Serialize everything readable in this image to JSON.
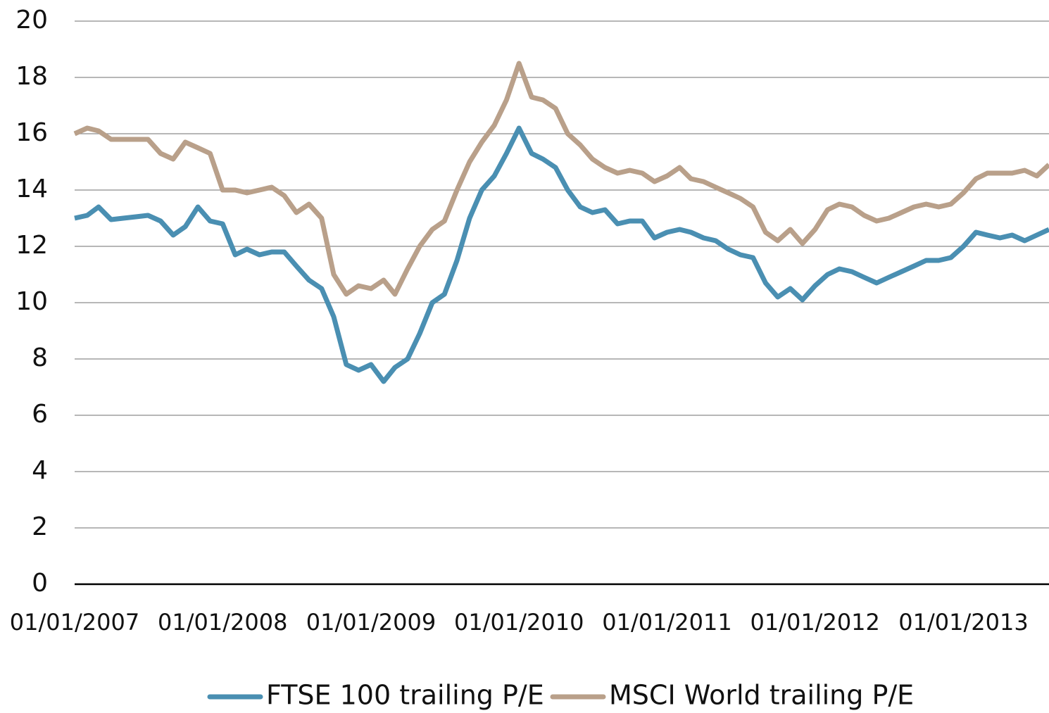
{
  "chart_data": {
    "type": "line",
    "x": [
      "2007-01-01",
      "2007-02-01",
      "2007-03-01",
      "2007-04-01",
      "2007-05-01",
      "2007-06-01",
      "2007-07-01",
      "2007-08-01",
      "2007-09-01",
      "2007-10-01",
      "2007-11-01",
      "2007-12-01",
      "2008-01-01",
      "2008-02-01",
      "2008-03-01",
      "2008-04-01",
      "2008-05-01",
      "2008-06-01",
      "2008-07-01",
      "2008-08-01",
      "2008-09-01",
      "2008-10-01",
      "2008-11-01",
      "2008-12-01",
      "2009-01-01",
      "2009-02-01",
      "2009-03-01",
      "2009-04-01",
      "2009-05-01",
      "2009-06-01",
      "2009-07-01",
      "2009-08-01",
      "2009-09-01",
      "2009-10-01",
      "2009-11-01",
      "2009-12-01",
      "2010-01-01",
      "2010-02-01",
      "2010-03-01",
      "2010-04-01",
      "2010-05-01",
      "2010-06-01",
      "2010-07-01",
      "2010-08-01",
      "2010-09-01",
      "2010-10-01",
      "2010-11-01",
      "2010-12-01",
      "2011-01-01",
      "2011-02-01",
      "2011-03-01",
      "2011-04-01",
      "2011-05-01",
      "2011-06-01",
      "2011-07-01",
      "2011-08-01",
      "2011-09-01",
      "2011-10-01",
      "2011-11-01",
      "2011-12-01",
      "2012-01-01",
      "2012-02-01",
      "2012-03-01",
      "2012-04-01",
      "2012-05-01",
      "2012-06-01",
      "2012-07-01",
      "2012-08-01",
      "2012-09-01",
      "2012-10-01",
      "2012-11-01",
      "2012-12-01",
      "2013-01-01",
      "2013-02-01",
      "2013-03-01",
      "2013-04-01",
      "2013-05-01",
      "2013-06-01",
      "2013-07-01",
      "2013-07-31"
    ],
    "series": [
      {
        "name": "FTSE 100 trailing P/E",
        "color": "#4a8fb2",
        "values": [
          13.0,
          13.1,
          13.4,
          12.95,
          13.0,
          13.05,
          13.1,
          12.9,
          12.4,
          12.7,
          13.4,
          12.9,
          12.8,
          11.7,
          11.9,
          11.7,
          11.8,
          11.8,
          11.3,
          10.8,
          10.5,
          9.5,
          7.8,
          7.6,
          7.8,
          7.2,
          7.7,
          8.0,
          8.9,
          10.0,
          10.3,
          11.5,
          13.0,
          14.0,
          14.5,
          15.3,
          16.2,
          15.3,
          15.1,
          14.8,
          14.0,
          13.4,
          13.2,
          13.3,
          12.8,
          12.9,
          12.9,
          12.3,
          12.5,
          12.6,
          12.5,
          12.3,
          12.2,
          11.9,
          11.7,
          11.6,
          10.7,
          10.2,
          10.5,
          10.1,
          10.6,
          11.0,
          11.2,
          11.1,
          10.9,
          10.7,
          10.9,
          11.1,
          11.3,
          11.5,
          11.5,
          11.6,
          12.0,
          12.5,
          12.4,
          12.3,
          12.4,
          12.2,
          12.4,
          12.6
        ]
      },
      {
        "name": "MSCI World trailing P/E",
        "color": "#b9a08a",
        "values": [
          16.0,
          16.2,
          16.1,
          15.8,
          15.8,
          15.8,
          15.8,
          15.3,
          15.1,
          15.7,
          15.5,
          15.3,
          14.0,
          14.0,
          13.9,
          14.0,
          14.1,
          13.8,
          13.2,
          13.5,
          13.0,
          11.0,
          10.3,
          10.6,
          10.5,
          10.8,
          10.3,
          11.2,
          12.0,
          12.6,
          12.9,
          14.0,
          15.0,
          15.7,
          16.3,
          17.2,
          18.5,
          17.3,
          17.2,
          16.9,
          16.0,
          15.6,
          15.1,
          14.8,
          14.6,
          14.7,
          14.6,
          14.3,
          14.5,
          14.8,
          14.4,
          14.3,
          14.1,
          13.9,
          13.7,
          13.4,
          12.5,
          12.2,
          12.6,
          12.1,
          12.6,
          13.3,
          13.5,
          13.4,
          13.1,
          12.9,
          13.0,
          13.2,
          13.4,
          13.5,
          13.4,
          13.5,
          13.9,
          14.4,
          14.6,
          14.6,
          14.6,
          14.7,
          14.5,
          14.9
        ]
      }
    ],
    "xlim": [
      "2007-01-01",
      "2013-07-31"
    ],
    "xticks": [
      {
        "value": "2007-01-01",
        "label": "01/01/2007"
      },
      {
        "value": "2008-01-01",
        "label": "01/01/2008"
      },
      {
        "value": "2009-01-01",
        "label": "01/01/2009"
      },
      {
        "value": "2010-01-01",
        "label": "01/01/2010"
      },
      {
        "value": "2011-01-01",
        "label": "01/01/2011"
      },
      {
        "value": "2012-01-01",
        "label": "01/01/2012"
      },
      {
        "value": "2013-01-01",
        "label": "01/01/2013"
      }
    ],
    "ylim": [
      0,
      20
    ],
    "yticks": [
      0,
      2,
      4,
      6,
      8,
      10,
      12,
      14,
      16,
      18,
      20
    ],
    "grid": true,
    "legend": "bottom"
  }
}
